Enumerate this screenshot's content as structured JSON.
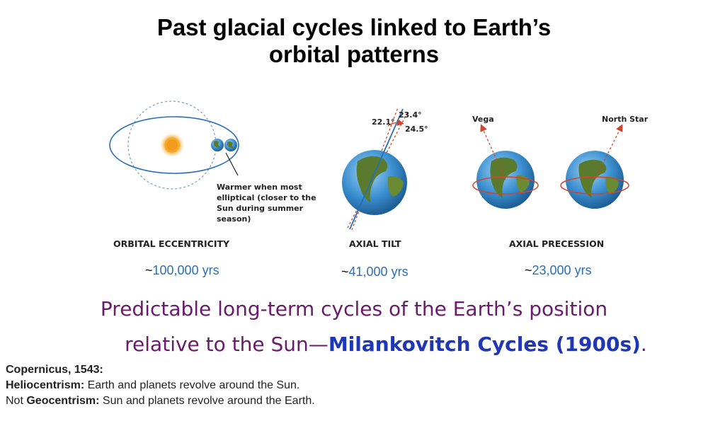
{
  "title": {
    "line1": "Past glacial cycles linked to Earth’s",
    "line2": "orbital patterns"
  },
  "figure": {
    "eccentricity": {
      "caption": "ORBITAL ECCENTRICITY",
      "period_prefix": "~",
      "period": "100,000 yrs",
      "note_lines": [
        "Warmer when most",
        "elliptical (closer to the",
        "Sun during summer",
        "season)"
      ]
    },
    "tilt": {
      "caption": "AXIAL TILT",
      "period_prefix": "~",
      "period": "41,000 yrs",
      "angle_min": "22.1°",
      "angle_mid": "23.4°",
      "angle_max": "24.5°"
    },
    "precession": {
      "caption": "AXIAL PRECESSION",
      "period_prefix": "~",
      "period": "23,000 yrs",
      "star_left": "Vega",
      "star_right": "North Star"
    }
  },
  "tagline": {
    "line1": "Predictable long-term cycles of the Earth’s position",
    "line2_prefix": "relative to the Sun—",
    "line2_highlight": "Milankovitch Cycles (1900s)",
    "line2_suffix": "."
  },
  "notes": {
    "line1_bold": "Copernicus, 1543:",
    "line2_bold": "Heliocentrism:",
    "line2_text": " Earth and planets revolve around the Sun.",
    "line3_prefix": "Not ",
    "line3_bold": "Geocentrism:",
    "line3_text": " Sun and planets revolve around the Earth."
  },
  "colors": {
    "tagline": "#6a1b6e",
    "highlight": "#1f36b5",
    "period_number": "#2a6fb6",
    "orbit_line": "#2a6fb6",
    "sun": "#f5a623",
    "ocean": "#3b8fd0",
    "land": "#5a7a2e",
    "arrow_red": "#d0452f"
  }
}
